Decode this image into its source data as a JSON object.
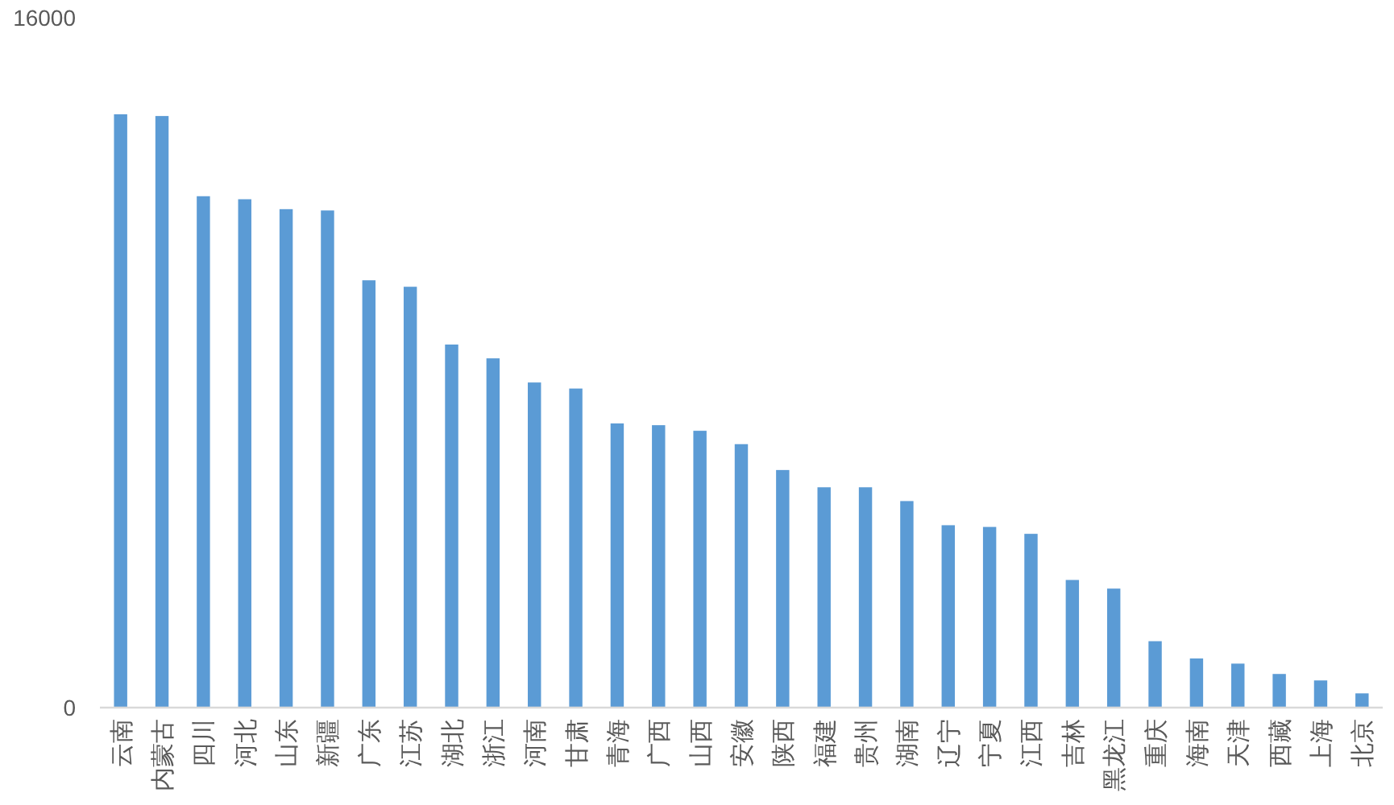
{
  "chart_data": {
    "type": "bar",
    "categories": [
      "云南",
      "内蒙古",
      "四川",
      "河北",
      "山东",
      "新疆",
      "广东",
      "江苏",
      "湖北",
      "浙江",
      "河南",
      "甘肃",
      "青海",
      "广西",
      "山西",
      "安徽",
      "陕西",
      "福建",
      "贵州",
      "湖南",
      "辽宁",
      "宁夏",
      "江西",
      "吉林",
      "黑龙江",
      "重庆",
      "海南",
      "天津",
      "西藏",
      "上海",
      "北京"
    ],
    "values": [
      13760,
      13720,
      11860,
      11790,
      11560,
      11530,
      9910,
      9760,
      8420,
      8100,
      7540,
      7400,
      6590,
      6550,
      6420,
      6110,
      5510,
      5110,
      5110,
      4790,
      4230,
      4190,
      4030,
      2960,
      2760,
      1540,
      1140,
      1020,
      780,
      630,
      330
    ],
    "color": "#5b9bd5",
    "ylim": [
      0,
      16000
    ],
    "yticks": [
      0,
      16000
    ]
  }
}
